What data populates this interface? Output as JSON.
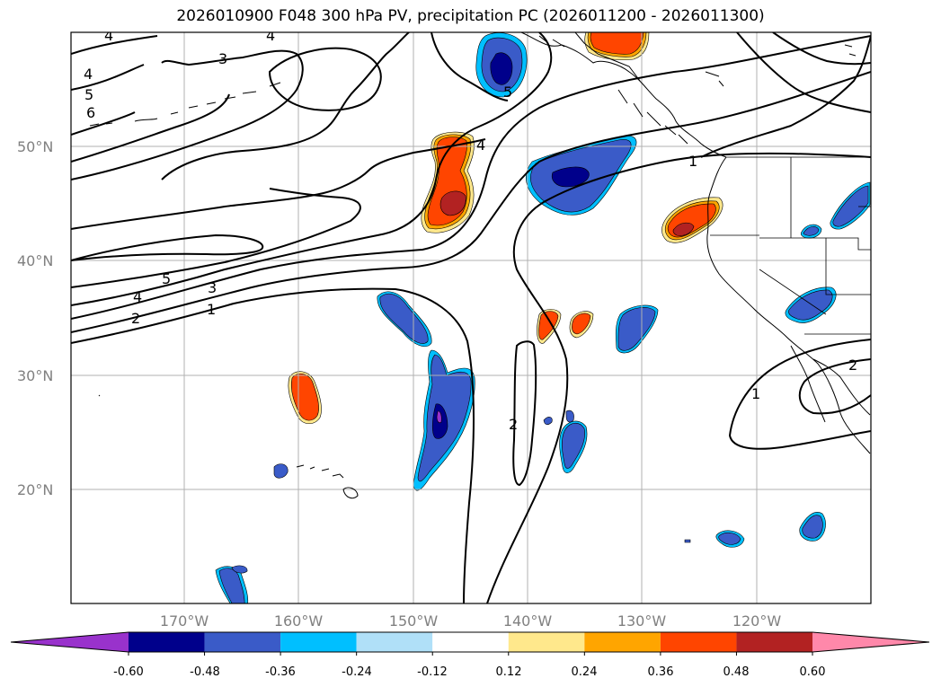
{
  "title": "2026010900 F048 300 hPa PV, precipitation PC (2026011200 - 2026011300)",
  "axes": {
    "lat_labels": [
      "50°N",
      "40°N",
      "30°N",
      "20°N"
    ],
    "lon_labels": [
      "170°W",
      "160°W",
      "150°W",
      "140°W",
      "130°W",
      "120°W"
    ]
  },
  "colorbar": {
    "colors": [
      "#9932cc",
      "#00008b",
      "#3a5bc8",
      "#00bfff",
      "#b0e0f8",
      "#ffffff",
      "#ffe88c",
      "#ffa500",
      "#ff4500",
      "#b22222",
      "#ff88aa"
    ],
    "ticks": [
      "-0.60",
      "-0.48",
      "-0.36",
      "-0.24",
      "-0.12",
      "0.12",
      "0.24",
      "0.36",
      "0.48",
      "0.60"
    ]
  },
  "contour_labels": [
    "4",
    "4",
    "3",
    "4",
    "5",
    "6",
    "4",
    "5",
    "5",
    "4",
    "3",
    "2",
    "1",
    "1",
    "2",
    "1",
    "2"
  ]
}
